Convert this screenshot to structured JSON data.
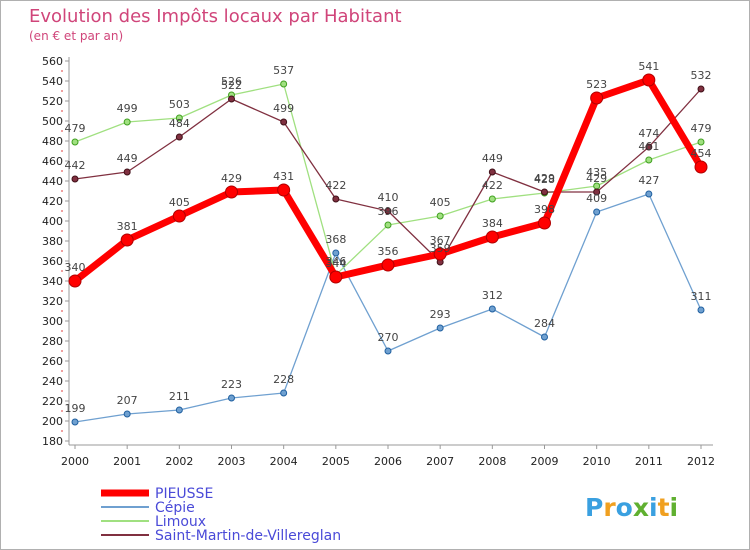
{
  "chart_data": {
    "type": "line",
    "title": "Evolution des Impôts locaux par Habitant",
    "subtitle": "(en € et par an)",
    "xlabel": "",
    "ylabel": "",
    "x": [
      "2000",
      "2001",
      "2002",
      "2003",
      "2004",
      "2005",
      "2006",
      "2007",
      "2008",
      "2009",
      "2010",
      "2011",
      "2012"
    ],
    "ylim": [
      180,
      560
    ],
    "yticks": [
      180,
      200,
      220,
      240,
      260,
      280,
      300,
      320,
      340,
      360,
      380,
      400,
      420,
      440,
      460,
      480,
      500,
      520,
      540,
      560
    ],
    "grid": false,
    "legend_position": "bottom-left",
    "series": [
      {
        "name": "PIEUSSE",
        "color": "#ff0000",
        "values": [
          340,
          381,
          405,
          429,
          431,
          344,
          356,
          367,
          384,
          398,
          523,
          541,
          454
        ]
      },
      {
        "name": "Cépie",
        "color": "#6fa0d0",
        "values": [
          199,
          207,
          211,
          223,
          228,
          368,
          270,
          293,
          312,
          284,
          409,
          427,
          311
        ]
      },
      {
        "name": "Limoux",
        "color": "#a0e080",
        "values": [
          479,
          499,
          503,
          526,
          537,
          346,
          396,
          405,
          422,
          428,
          435,
          461,
          479
        ]
      },
      {
        "name": "Saint-Martin-de-Villereglan",
        "color": "#803040",
        "values": [
          442,
          449,
          484,
          522,
          499,
          422,
          410,
          359,
          449,
          429,
          429,
          474,
          532
        ]
      }
    ]
  },
  "branding": {
    "letters": [
      "P",
      "r",
      "o",
      "x",
      "i",
      "t",
      "i"
    ],
    "colors": [
      "#3aa0e0",
      "#f0a020",
      "#3aa0e0",
      "#60b030",
      "#3aa0e0",
      "#f0a020",
      "#60b030"
    ]
  }
}
